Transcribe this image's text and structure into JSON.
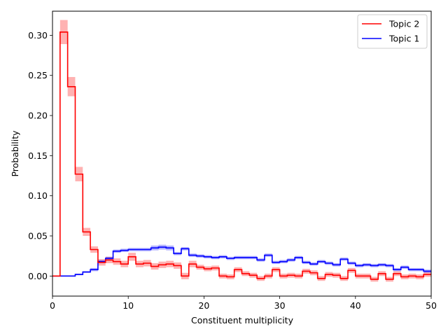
{
  "chart_data": {
    "type": "line",
    "xlabel": "Constituent multiplicity",
    "ylabel": "Probability",
    "xlim": [
      0,
      50
    ],
    "ylim": [
      -0.025,
      0.33
    ],
    "xticks": [
      0,
      10,
      20,
      30,
      40,
      50
    ],
    "yticks": [
      0.0,
      0.05,
      0.1,
      0.15,
      0.2,
      0.25,
      0.3
    ],
    "ytick_labels": [
      "0.00",
      "0.05",
      "0.10",
      "0.15",
      "0.20",
      "0.25",
      "0.30"
    ],
    "grid": false,
    "legend_position": "top-right",
    "step_edges": [
      0,
      1,
      2,
      3,
      4,
      5,
      6,
      7,
      8,
      9,
      10,
      11,
      12,
      13,
      14,
      15,
      16,
      17,
      18,
      19,
      20,
      21,
      22,
      23,
      24,
      25,
      26,
      27,
      28,
      29,
      30,
      31,
      32,
      33,
      34,
      35,
      36,
      37,
      38,
      39,
      40,
      41,
      42,
      43,
      44,
      45,
      46,
      47,
      48,
      49,
      50
    ],
    "series": [
      {
        "name": "Topic 2",
        "color": "#ff0000",
        "band_color": "#ff0000",
        "values": [
          0.0,
          0.304,
          0.236,
          0.127,
          0.055,
          0.033,
          0.017,
          0.02,
          0.018,
          0.015,
          0.024,
          0.015,
          0.016,
          0.012,
          0.014,
          0.015,
          0.013,
          0.0,
          0.015,
          0.011,
          0.009,
          0.01,
          0.0,
          -0.001,
          0.008,
          0.003,
          0.001,
          -0.003,
          0.0,
          0.008,
          0.0,
          0.001,
          0.0,
          0.006,
          0.004,
          -0.003,
          0.002,
          0.001,
          -0.003,
          0.007,
          0.0,
          0.0,
          -0.004,
          0.003,
          -0.004,
          0.003,
          -0.001,
          0.0,
          -0.001,
          0.002
        ],
        "errors": [
          0.0,
          0.015,
          0.012,
          0.009,
          0.005,
          0.004,
          0.004,
          0.004,
          0.004,
          0.004,
          0.005,
          0.004,
          0.004,
          0.004,
          0.004,
          0.004,
          0.004,
          0.004,
          0.004,
          0.003,
          0.003,
          0.003,
          0.003,
          0.003,
          0.003,
          0.003,
          0.003,
          0.003,
          0.003,
          0.003,
          0.003,
          0.003,
          0.003,
          0.003,
          0.003,
          0.003,
          0.003,
          0.003,
          0.003,
          0.003,
          0.003,
          0.003,
          0.003,
          0.003,
          0.003,
          0.003,
          0.003,
          0.003,
          0.003,
          0.003
        ]
      },
      {
        "name": "Topic 1",
        "color": "#0000ff",
        "band_color": "#0000ff",
        "values": [
          0.0,
          0.0,
          0.0,
          0.002,
          0.005,
          0.008,
          0.018,
          0.022,
          0.031,
          0.032,
          0.033,
          0.033,
          0.033,
          0.035,
          0.036,
          0.035,
          0.028,
          0.034,
          0.026,
          0.025,
          0.024,
          0.023,
          0.024,
          0.022,
          0.023,
          0.023,
          0.023,
          0.02,
          0.026,
          0.017,
          0.018,
          0.02,
          0.023,
          0.017,
          0.015,
          0.018,
          0.016,
          0.014,
          0.021,
          0.016,
          0.013,
          0.014,
          0.013,
          0.014,
          0.013,
          0.008,
          0.011,
          0.008,
          0.008,
          0.006
        ],
        "errors": [
          0.0,
          0.0,
          0.0,
          0.001,
          0.001,
          0.002,
          0.002,
          0.002,
          0.002,
          0.002,
          0.002,
          0.002,
          0.002,
          0.003,
          0.003,
          0.003,
          0.002,
          0.002,
          0.002,
          0.002,
          0.002,
          0.002,
          0.002,
          0.002,
          0.002,
          0.002,
          0.002,
          0.002,
          0.002,
          0.002,
          0.002,
          0.002,
          0.002,
          0.002,
          0.002,
          0.002,
          0.002,
          0.002,
          0.002,
          0.002,
          0.002,
          0.002,
          0.002,
          0.002,
          0.002,
          0.002,
          0.002,
          0.002,
          0.002,
          0.002
        ]
      }
    ],
    "legend_order": [
      "Topic 2",
      "Topic 1"
    ]
  }
}
